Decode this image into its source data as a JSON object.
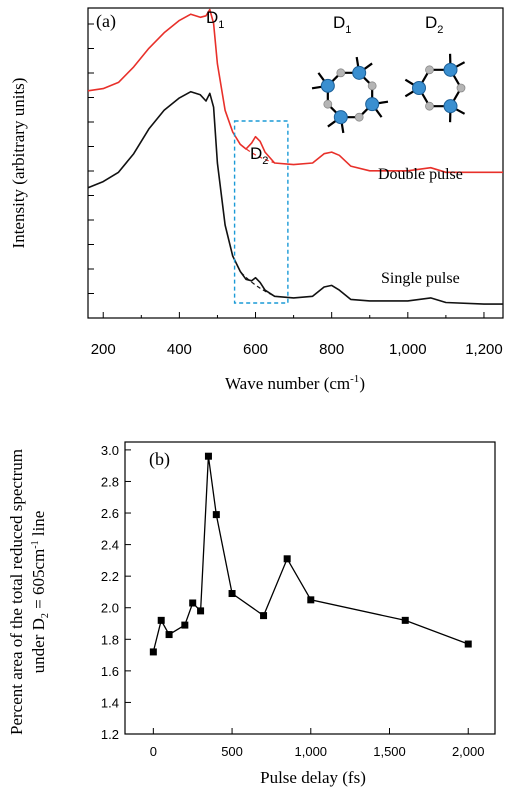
{
  "chart_data": [
    {
      "panel": "(a)",
      "type": "line",
      "xlabel": "Wave number (cm",
      "xlabel_sup": "-1",
      "xlabel_end": ")",
      "ylabel": "Intensity (arbitrary units)",
      "xlim": [
        160,
        1250
      ],
      "ylim": [
        0,
        1
      ],
      "xticks": [
        200,
        400,
        600,
        800,
        1000,
        1200
      ],
      "xtick_labels": [
        "200",
        "400",
        "600",
        "800",
        "1,000",
        "1,200"
      ],
      "annotations": {
        "d1_peak": "D",
        "d1_peak_sub": "1",
        "d2_peak": "D",
        "d2_peak_sub": "2",
        "mol_d1": "D",
        "mol_d1_sub": "1",
        "mol_d2": "D",
        "mol_d2_sub": "2"
      },
      "highlight_box_x": [
        545,
        685
      ],
      "series": [
        {
          "name": "Double pulse",
          "color": "#e8302a",
          "x": [
            160,
            200,
            240,
            280,
            320,
            360,
            400,
            430,
            455,
            470,
            480,
            490,
            500,
            520,
            540,
            560,
            575,
            590,
            600,
            612,
            625,
            650,
            700,
            750,
            780,
            800,
            820,
            850,
            900,
            1000,
            1060,
            1100,
            1200,
            1250
          ],
          "y": [
            0.733,
            0.74,
            0.76,
            0.81,
            0.87,
            0.92,
            0.96,
            0.98,
            0.97,
            0.975,
            0.995,
            0.95,
            0.82,
            0.67,
            0.6,
            0.56,
            0.545,
            0.565,
            0.585,
            0.57,
            0.535,
            0.5,
            0.495,
            0.5,
            0.53,
            0.535,
            0.525,
            0.49,
            0.475,
            0.475,
            0.485,
            0.47,
            0.47,
            0.47
          ]
        },
        {
          "name": "Single pulse",
          "color": "#111111",
          "x": [
            160,
            200,
            240,
            280,
            320,
            360,
            400,
            430,
            455,
            470,
            480,
            490,
            500,
            520,
            540,
            560,
            575,
            590,
            600,
            612,
            625,
            650,
            700,
            750,
            780,
            800,
            820,
            850,
            900,
            1000,
            1060,
            1100,
            1200,
            1250
          ],
          "y": [
            0.42,
            0.44,
            0.47,
            0.53,
            0.61,
            0.67,
            0.71,
            0.73,
            0.72,
            0.7,
            0.725,
            0.68,
            0.5,
            0.3,
            0.2,
            0.15,
            0.125,
            0.12,
            0.13,
            0.115,
            0.09,
            0.07,
            0.065,
            0.07,
            0.1,
            0.105,
            0.09,
            0.06,
            0.055,
            0.055,
            0.065,
            0.05,
            0.045,
            0.045
          ]
        }
      ]
    },
    {
      "panel": "(b)",
      "type": "scatter",
      "xlabel": "Pulse delay (fs)",
      "ylabel_line1": "Percent area of the total reduced spectrum",
      "ylabel_line2_pre": "under D",
      "ylabel_line2_sub": "2",
      "ylabel_line2_mid": " = 605cm",
      "ylabel_line2_sup": "-1",
      "ylabel_line2_post": " line",
      "xlim": [
        -180,
        2170
      ],
      "ylim": [
        1.2,
        3.05
      ],
      "xticks": [
        0,
        500,
        1000,
        1500,
        2000
      ],
      "xtick_labels": [
        "0",
        "500",
        "1,000",
        "1,500",
        "2,000"
      ],
      "yticks": [
        1.2,
        1.4,
        1.6,
        1.8,
        2.0,
        2.2,
        2.4,
        2.6,
        2.8,
        3.0
      ],
      "ytick_labels": [
        "1.2",
        "1.4",
        "1.6",
        "1.8",
        "2.0",
        "2.2",
        "2.4",
        "2.6",
        "2.8",
        "3.0"
      ],
      "x": [
        0,
        50,
        100,
        200,
        250,
        300,
        350,
        400,
        500,
        700,
        850,
        1000,
        1600,
        2000
      ],
      "y": [
        1.72,
        1.92,
        1.83,
        1.89,
        2.03,
        1.98,
        2.96,
        2.59,
        2.09,
        1.95,
        2.31,
        2.05,
        1.92,
        1.77
      ]
    }
  ]
}
